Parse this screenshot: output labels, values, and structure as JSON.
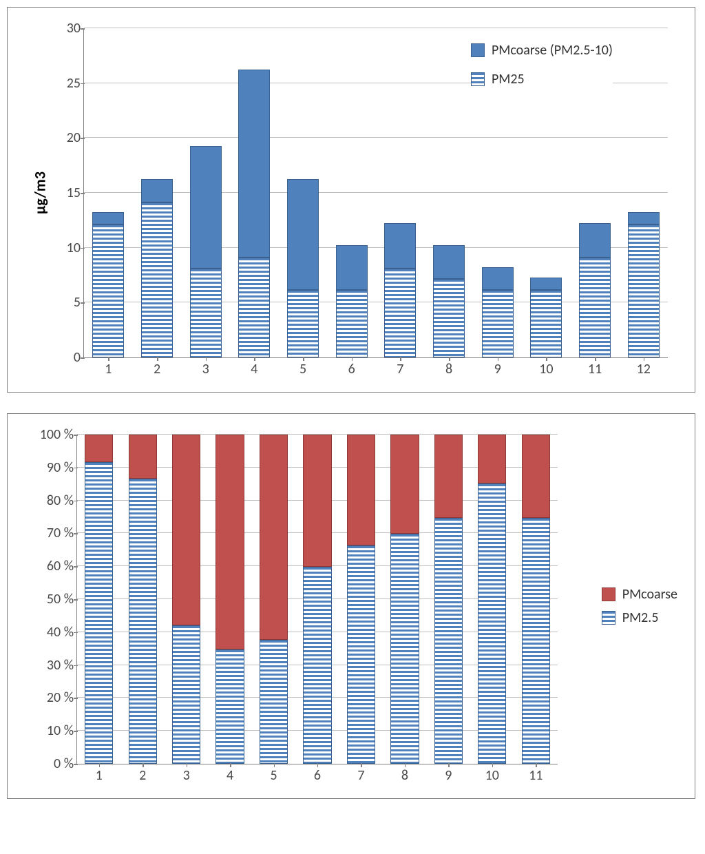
{
  "chart1": {
    "type": "stacked-bar",
    "categories": [
      "1",
      "2",
      "3",
      "4",
      "5",
      "6",
      "7",
      "8",
      "9",
      "10",
      "11",
      "12"
    ],
    "series": [
      {
        "name": "PM25",
        "label": "PM25",
        "values": [
          12,
          14,
          8,
          9,
          6,
          6,
          8,
          7,
          6,
          6,
          9,
          12
        ]
      },
      {
        "name": "PMcoarse",
        "label": "PMcoarse (PM2.5-10)",
        "values": [
          1,
          2,
          11,
          17,
          10,
          4,
          4,
          3,
          2,
          1,
          3,
          1
        ]
      }
    ],
    "ylim": [
      0,
      30
    ],
    "ytick_step": 5,
    "y_ticks": [
      "0",
      "5",
      "10",
      "15",
      "20",
      "25",
      "30"
    ],
    "ylabel": "µg/m3",
    "ylabel_fontsize": 22,
    "tick_fontsize": 20,
    "legend_fontsize": 20,
    "background_color": "#ffffff",
    "border_color": "#808080",
    "grid_color": "#bfbfbf",
    "series_colors": {
      "PMcoarse_fill": "#4f81bd",
      "PMcoarse_border": "#3a6090",
      "PM25_stripe": "#4f81bd",
      "PM25_bg": "#ffffff",
      "PM25_border": "#3a6090"
    },
    "stripe_height": 3,
    "stripe_gap": 3,
    "bar_width": 0.62
  },
  "chart2": {
    "type": "stacked-bar-100",
    "categories": [
      "1",
      "2",
      "3",
      "4",
      "5",
      "6",
      "7",
      "8",
      "9",
      "10",
      "11"
    ],
    "series": [
      {
        "name": "PM25",
        "label": "PM2.5",
        "values": [
          92,
          87,
          42,
          34.5,
          37.5,
          60,
          66.5,
          70,
          75,
          85.5,
          75
        ]
      },
      {
        "name": "PMcoarse",
        "label": "PMcoarse",
        "values": [
          8,
          13,
          58,
          65.5,
          62.5,
          40,
          33.5,
          30,
          25,
          14.5,
          25
        ]
      }
    ],
    "ylim": [
      0,
      100
    ],
    "ytick_step": 10,
    "y_ticks": [
      "0 %",
      "10 %",
      "20 %",
      "30 %",
      "40 %",
      "50 %",
      "60 %",
      "70 %",
      "80 %",
      "90 %",
      "100 %"
    ],
    "tick_fontsize": 20,
    "legend_fontsize": 20,
    "background_color": "#ffffff",
    "border_color": "#808080",
    "grid_color": "#bfbfbf",
    "series_colors": {
      "PMcoarse_fill": "#c0504d",
      "PMcoarse_border": "#8c3836",
      "PM25_stripe": "#4f81bd",
      "PM25_bg": "#ffffff",
      "PM25_border": "#3a6090"
    },
    "stripe_height": 3,
    "stripe_gap": 3,
    "bar_width": 0.62
  }
}
